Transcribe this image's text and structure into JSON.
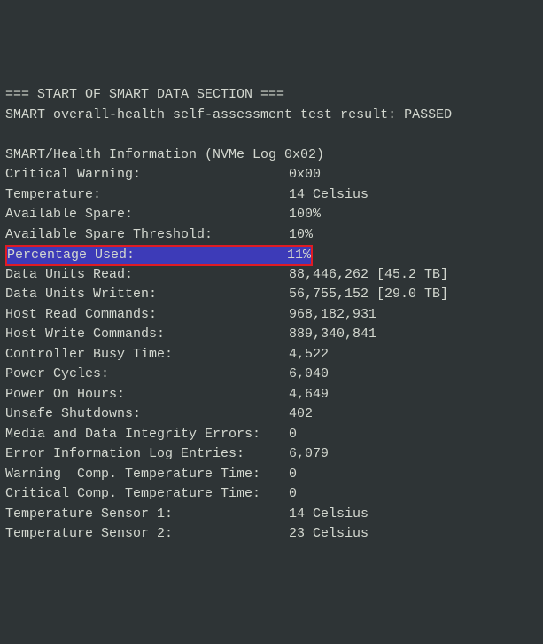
{
  "header": {
    "section_start": "=== START OF SMART DATA SECTION ===",
    "overall_health": "SMART overall-health self-assessment test result: PASSED",
    "info_header": "SMART/Health Information (NVMe Log 0x02)"
  },
  "rows": [
    {
      "label": "Critical Warning:",
      "value": "0x00",
      "highlighted": false
    },
    {
      "label": "Temperature:",
      "value": "14 Celsius",
      "highlighted": false
    },
    {
      "label": "Available Spare:",
      "value": "100%",
      "highlighted": false
    },
    {
      "label": "Available Spare Threshold:",
      "value": "10%",
      "highlighted": false
    },
    {
      "label": "Percentage Used:",
      "value": "11%",
      "highlighted": true
    },
    {
      "label": "Data Units Read:",
      "value": "88,446,262 [45.2 TB]",
      "highlighted": false
    },
    {
      "label": "Data Units Written:",
      "value": "56,755,152 [29.0 TB]",
      "highlighted": false
    },
    {
      "label": "Host Read Commands:",
      "value": "968,182,931",
      "highlighted": false
    },
    {
      "label": "Host Write Commands:",
      "value": "889,340,841",
      "highlighted": false
    },
    {
      "label": "Controller Busy Time:",
      "value": "4,522",
      "highlighted": false
    },
    {
      "label": "Power Cycles:",
      "value": "6,040",
      "highlighted": false
    },
    {
      "label": "Power On Hours:",
      "value": "4,649",
      "highlighted": false
    },
    {
      "label": "Unsafe Shutdowns:",
      "value": "402",
      "highlighted": false
    },
    {
      "label": "Media and Data Integrity Errors:",
      "value": "0",
      "highlighted": false
    },
    {
      "label": "Error Information Log Entries:",
      "value": "6,079",
      "highlighted": false
    },
    {
      "label": "Warning  Comp. Temperature Time:",
      "value": "0",
      "highlighted": false
    },
    {
      "label": "Critical Comp. Temperature Time:",
      "value": "0",
      "highlighted": false
    },
    {
      "label": "Temperature Sensor 1:",
      "value": "14 Celsius",
      "highlighted": false
    },
    {
      "label": "Temperature Sensor 2:",
      "value": "23 Celsius",
      "highlighted": false
    }
  ],
  "style": {
    "background_color": "#2e3436",
    "text_color": "#d3d7cf",
    "highlight_bg": "#3d3bb8",
    "highlight_border": "#e01b24",
    "font_family": "monospace",
    "font_size": 15
  }
}
